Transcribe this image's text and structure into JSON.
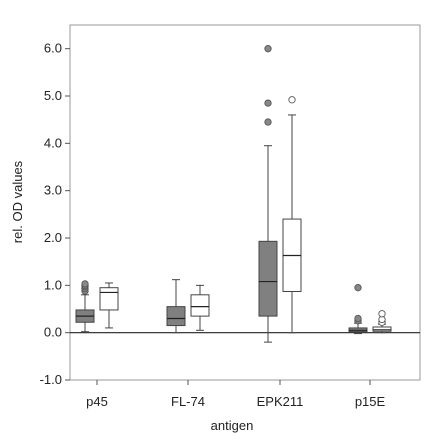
{
  "chart_data": {
    "type": "box",
    "xlabel": "antigen",
    "ylabel": "rel. OD values",
    "ylim": [
      -1.0,
      6.5
    ],
    "yticks": [
      "-1.0",
      "0.0",
      "1.0",
      "2.0",
      "3.0",
      "4.0",
      "5.0",
      "6.0"
    ],
    "ytick_values": [
      -1,
      0,
      1,
      2,
      3,
      4,
      5,
      6
    ],
    "categories": [
      "p45",
      "FL-74",
      "EPK211",
      "p15E"
    ],
    "reference_line": 0,
    "grid": false,
    "series": [
      {
        "fill": "#808080",
        "boxes": [
          {
            "category": "p45",
            "min": 0.02,
            "q1": 0.22,
            "median": 0.35,
            "q3": 0.48,
            "max": 0.8,
            "outliers": [
              0.88,
              0.93,
              0.97,
              1.0,
              1.03
            ]
          },
          {
            "category": "FL-74",
            "min": 0.0,
            "q1": 0.15,
            "median": 0.3,
            "q3": 0.55,
            "max": 1.12,
            "outliers": []
          },
          {
            "category": "EPK211",
            "min": -0.2,
            "q1": 0.35,
            "median": 1.08,
            "q3": 1.93,
            "max": 3.95,
            "outliers": [
              4.45,
              4.85,
              6.0
            ]
          },
          {
            "category": "p15E",
            "min": -0.02,
            "q1": 0.02,
            "median": 0.05,
            "q3": 0.1,
            "max": 0.2,
            "outliers": [
              0.25,
              0.3,
              0.95
            ]
          }
        ]
      },
      {
        "fill": "#ffffff",
        "boxes": [
          {
            "category": "p45",
            "min": 0.1,
            "q1": 0.48,
            "median": 0.85,
            "q3": 0.95,
            "max": 1.05,
            "outliers": []
          },
          {
            "category": "FL-74",
            "min": 0.05,
            "q1": 0.35,
            "median": 0.55,
            "q3": 0.8,
            "max": 1.0,
            "outliers": []
          },
          {
            "category": "EPK211",
            "min": 0.0,
            "q1": 0.87,
            "median": 1.63,
            "q3": 2.4,
            "max": 4.6,
            "outliers": [
              4.92
            ]
          },
          {
            "category": "p15E",
            "min": 0.0,
            "q1": 0.03,
            "median": 0.06,
            "q3": 0.12,
            "max": 0.18,
            "outliers": [
              0.22,
              0.28,
              0.4
            ]
          }
        ]
      }
    ]
  }
}
